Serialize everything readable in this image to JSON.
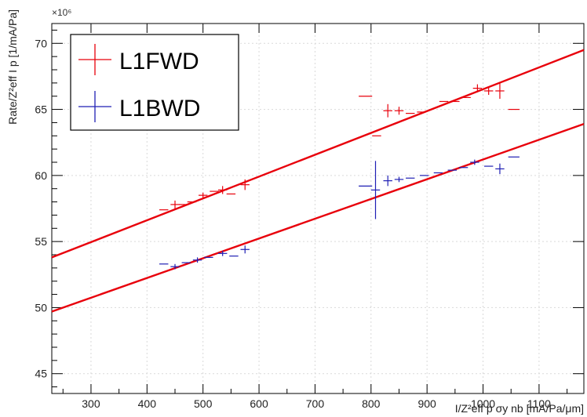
{
  "chart_data": {
    "type": "scatter",
    "title": "",
    "xlabel": "I/Z²eff p σy nb [mA/Pa/μm]",
    "ylabel": "Rate/Z²eff I p [1/mA/Pa]",
    "y_multiplier": "×10⁶",
    "xlim": [
      230,
      1180
    ],
    "ylim": [
      43.5,
      71.5
    ],
    "x_ticks": [
      300,
      400,
      500,
      600,
      700,
      800,
      900,
      1000,
      1100
    ],
    "y_ticks": [
      45,
      50,
      55,
      60,
      65,
      70
    ],
    "grid": true,
    "legend_position": "top-left",
    "series": [
      {
        "name": "L1FWD",
        "color": "#e8000b",
        "points": [
          {
            "x": 430,
            "y": 57.4,
            "xerr": 8,
            "yerr": 0
          },
          {
            "x": 450,
            "y": 57.8,
            "xerr": 8,
            "yerr": 0.3
          },
          {
            "x": 465,
            "y": 57.8,
            "xerr": 8,
            "yerr": 0
          },
          {
            "x": 480,
            "y": 58.0,
            "xerr": 8,
            "yerr": 0
          },
          {
            "x": 500,
            "y": 58.5,
            "xerr": 8,
            "yerr": 0.2
          },
          {
            "x": 520,
            "y": 58.8,
            "xerr": 8,
            "yerr": 0
          },
          {
            "x": 535,
            "y": 58.9,
            "xerr": 8,
            "yerr": 0.3
          },
          {
            "x": 550,
            "y": 58.6,
            "xerr": 8,
            "yerr": 0
          },
          {
            "x": 575,
            "y": 59.3,
            "xerr": 8,
            "yerr": 0.4
          },
          {
            "x": 790,
            "y": 66.0,
            "xerr": 12,
            "yerr": 0
          },
          {
            "x": 810,
            "y": 63.0,
            "xerr": 8,
            "yerr": 0
          },
          {
            "x": 830,
            "y": 64.9,
            "xerr": 8,
            "yerr": 0.5
          },
          {
            "x": 850,
            "y": 64.9,
            "xerr": 8,
            "yerr": 0.3
          },
          {
            "x": 870,
            "y": 64.7,
            "xerr": 8,
            "yerr": 0
          },
          {
            "x": 890,
            "y": 64.8,
            "xerr": 8,
            "yerr": 0
          },
          {
            "x": 930,
            "y": 65.6,
            "xerr": 8,
            "yerr": 0
          },
          {
            "x": 950,
            "y": 65.6,
            "xerr": 8,
            "yerr": 0
          },
          {
            "x": 970,
            "y": 65.9,
            "xerr": 8,
            "yerr": 0
          },
          {
            "x": 990,
            "y": 66.6,
            "xerr": 8,
            "yerr": 0.3
          },
          {
            "x": 1010,
            "y": 66.4,
            "xerr": 8,
            "yerr": 0.3
          },
          {
            "x": 1030,
            "y": 66.4,
            "xerr": 8,
            "yerr": 0.6
          },
          {
            "x": 1055,
            "y": 65.0,
            "xerr": 10,
            "yerr": 0
          }
        ],
        "fit_line": {
          "x": [
            230,
            1180
          ],
          "y": [
            53.8,
            69.5
          ]
        }
      },
      {
        "name": "L1BWD",
        "color": "#1f1fb4",
        "points": [
          {
            "x": 430,
            "y": 53.3,
            "xerr": 8,
            "yerr": 0
          },
          {
            "x": 450,
            "y": 53.1,
            "xerr": 8,
            "yerr": 0.2
          },
          {
            "x": 470,
            "y": 53.4,
            "xerr": 8,
            "yerr": 0
          },
          {
            "x": 490,
            "y": 53.6,
            "xerr": 8,
            "yerr": 0.2
          },
          {
            "x": 510,
            "y": 53.8,
            "xerr": 8,
            "yerr": 0
          },
          {
            "x": 535,
            "y": 54.1,
            "xerr": 8,
            "yerr": 0.2
          },
          {
            "x": 555,
            "y": 53.9,
            "xerr": 8,
            "yerr": 0
          },
          {
            "x": 575,
            "y": 54.4,
            "xerr": 8,
            "yerr": 0.3
          },
          {
            "x": 790,
            "y": 59.2,
            "xerr": 12,
            "yerr": 0
          },
          {
            "x": 808,
            "y": 58.9,
            "xerr": 8,
            "yerr": 2.2
          },
          {
            "x": 830,
            "y": 59.6,
            "xerr": 8,
            "yerr": 0.4
          },
          {
            "x": 850,
            "y": 59.7,
            "xerr": 8,
            "yerr": 0.2
          },
          {
            "x": 870,
            "y": 59.8,
            "xerr": 8,
            "yerr": 0
          },
          {
            "x": 895,
            "y": 60.0,
            "xerr": 8,
            "yerr": 0
          },
          {
            "x": 920,
            "y": 60.2,
            "xerr": 8,
            "yerr": 0
          },
          {
            "x": 945,
            "y": 60.4,
            "xerr": 8,
            "yerr": 0
          },
          {
            "x": 965,
            "y": 60.6,
            "xerr": 8,
            "yerr": 0
          },
          {
            "x": 985,
            "y": 61.0,
            "xerr": 8,
            "yerr": 0.2
          },
          {
            "x": 1010,
            "y": 60.7,
            "xerr": 8,
            "yerr": 0
          },
          {
            "x": 1030,
            "y": 60.5,
            "xerr": 8,
            "yerr": 0.4
          },
          {
            "x": 1055,
            "y": 61.4,
            "xerr": 10,
            "yerr": 0
          }
        ],
        "fit_line": {
          "x": [
            230,
            1180
          ],
          "y": [
            49.7,
            63.9
          ]
        }
      }
    ],
    "fit_color": "#e8000b"
  }
}
